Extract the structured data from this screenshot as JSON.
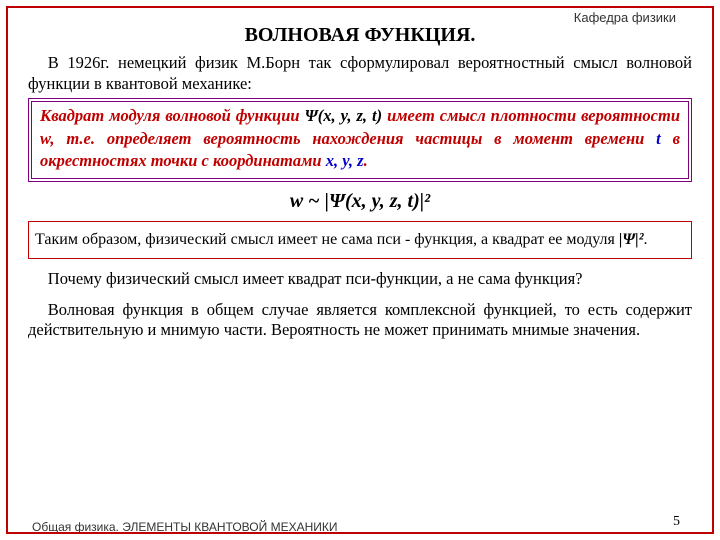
{
  "dept": "Кафедра физики",
  "footer": "Общая физика. ЭЛЕМЕНТЫ КВАНТОВОЙ МЕХАНИКИ",
  "page_number": "5",
  "title": "ВОЛНОВАЯ ФУНКЦИЯ.",
  "intro": "В 1926г. немецкий физик М.Борн так сформулировал вероятностный смысл волновой функции в квантовой механике:",
  "box": {
    "lead": "Квадрат модуля волновой функции ",
    "psi_expr": "Ψ(x, y, z, t)",
    "after_psi": " имеет смысл ",
    "density": "плотности вероятности w,",
    "mid": " т.е. определяет вероятность нахождения частицы в момент времени ",
    "t_var": "t",
    "mid2": " в окрестностях точки с координатами ",
    "xyz": "x, y, z",
    "dot": "."
  },
  "formula": "w ~ |Ψ(x, y, z, t)|²",
  "thinbox": {
    "text1": "Таким образом, физический смысл имеет не сама пси - функция, а квадрат ее модуля ",
    "psi2": "|Ψ|²",
    "dot": "."
  },
  "q1": "Почему физический смысл имеет квадрат пси-функции, а не сама функция?",
  "q2": "Волновая функция в общем случае является комплексной функцией, то есть содержит действительную и мнимую части. Вероятность не может  принимать мнимые значения.",
  "colors": {
    "frame": "#c00000",
    "double_border": "#800080",
    "accent_text": "#c00000",
    "blue": "#0000cc"
  }
}
